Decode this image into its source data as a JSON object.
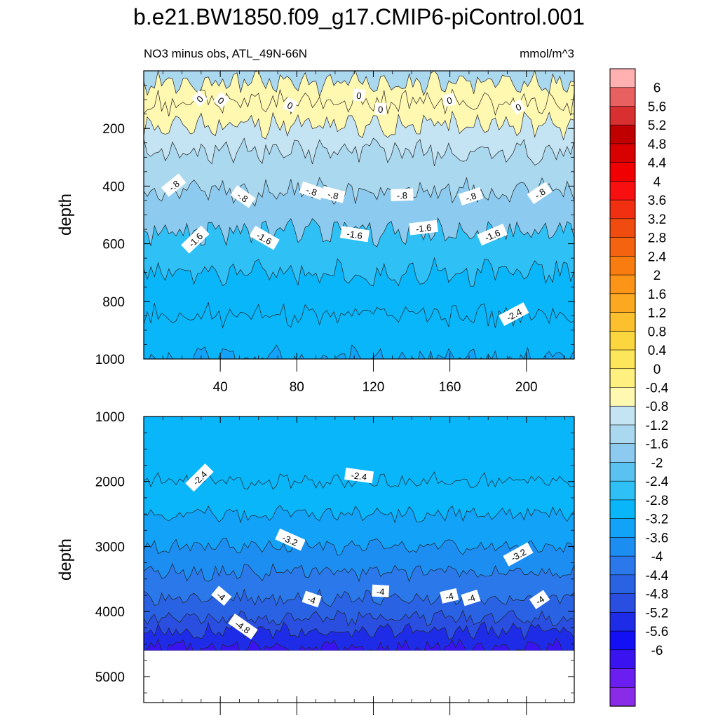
{
  "title": "b.e21.BW1850.f09_g17.CMIP6-piControl.001",
  "colors": {
    "levels": [
      "#8a2be8",
      "#6a1ff0",
      "#3a14f0",
      "#1410f5",
      "#1e2ce8",
      "#2a4ee0",
      "#2a62e4",
      "#2a78ea",
      "#1c8ef2",
      "#12a2f8",
      "#0ab6fa",
      "#2fc0f5",
      "#5ac2f0",
      "#8ccbef",
      "#aad8ef",
      "#c5e4f3",
      "#fff8b0",
      "#fff080",
      "#fde65a",
      "#fcd63e",
      "#fcc02e",
      "#fca820",
      "#fc9418",
      "#f87c10",
      "#f46410",
      "#f04c10",
      "#f03010",
      "#f81010",
      "#f00000",
      "#d80000",
      "#c00000",
      "#d83030",
      "#e86060",
      "#ffb0b0"
    ]
  },
  "colorbar": {
    "labels": [
      "6",
      "5.6",
      "5.2",
      "4.8",
      "4.4",
      "4",
      "3.6",
      "3.2",
      "2.8",
      "2.4",
      "2",
      "1.6",
      "1.2",
      "0.8",
      "0.4",
      "0",
      "-0.4",
      "-0.8",
      "-1.2",
      "-1.6",
      "-2",
      "-2.4",
      "-2.8",
      "-3.2",
      "-3.6",
      "-4",
      "-4.4",
      "-4.8",
      "-5.2",
      "-5.6",
      "-6"
    ]
  },
  "chart_data": [
    {
      "type": "heatmap",
      "title": "NO3 minus obs, ATL_49N-66N",
      "units": "mmol/m^3",
      "ylabel": "depth",
      "xlim": [
        0,
        225
      ],
      "ylim": [
        0,
        1000
      ],
      "y_inverted": true,
      "x_ticks": [
        "40",
        "80",
        "120",
        "160",
        "200"
      ],
      "y_ticks": [
        "200",
        "400",
        "600",
        "800",
        "1000"
      ],
      "contour_bands": [
        {
          "depth": 10,
          "value": -0.6
        },
        {
          "depth": 40,
          "value": 0.2
        },
        {
          "depth": 110,
          "value": 0.1
        },
        {
          "depth": 190,
          "value": -0.3
        },
        {
          "depth": 280,
          "value": -0.6
        },
        {
          "depth": 420,
          "value": -1.0
        },
        {
          "depth": 560,
          "value": -1.7
        },
        {
          "depth": 700,
          "value": -2.1
        },
        {
          "depth": 850,
          "value": -2.3
        },
        {
          "depth": 1000,
          "value": -2.5
        }
      ],
      "contour_labels": [
        "0",
        "0",
        "0",
        "0",
        "0",
        "0",
        "0",
        "-.8",
        "-.8",
        "-.8",
        "-.8",
        "-.8",
        "-.8",
        "-.8",
        "-1.6",
        "-1.6",
        "-1.6",
        "-1.6",
        "-1.6",
        "-2.4"
      ]
    },
    {
      "type": "heatmap",
      "ylabel": "depth",
      "xlim": [
        0,
        225
      ],
      "ylim": [
        1000,
        5400
      ],
      "y_inverted": true,
      "y_ticks": [
        "1000",
        "2000",
        "3000",
        "4000",
        "5000"
      ],
      "data_max_depth": 4600,
      "contour_bands": [
        {
          "depth": 1000,
          "value": -2.3
        },
        {
          "depth": 2000,
          "value": -2.4
        },
        {
          "depth": 2500,
          "value": -2.8
        },
        {
          "depth": 3000,
          "value": -3.2
        },
        {
          "depth": 3400,
          "value": -3.6
        },
        {
          "depth": 3800,
          "value": -4.0
        },
        {
          "depth": 4100,
          "value": -4.2
        },
        {
          "depth": 4300,
          "value": -4.8
        },
        {
          "depth": 4550,
          "value": -5.6
        }
      ],
      "contour_labels": [
        "-2.4",
        "-2.4",
        "-3.2",
        "-3.2",
        "-4",
        "-4",
        "-4",
        "-4",
        "-4",
        "-4",
        "-4.8"
      ]
    }
  ]
}
